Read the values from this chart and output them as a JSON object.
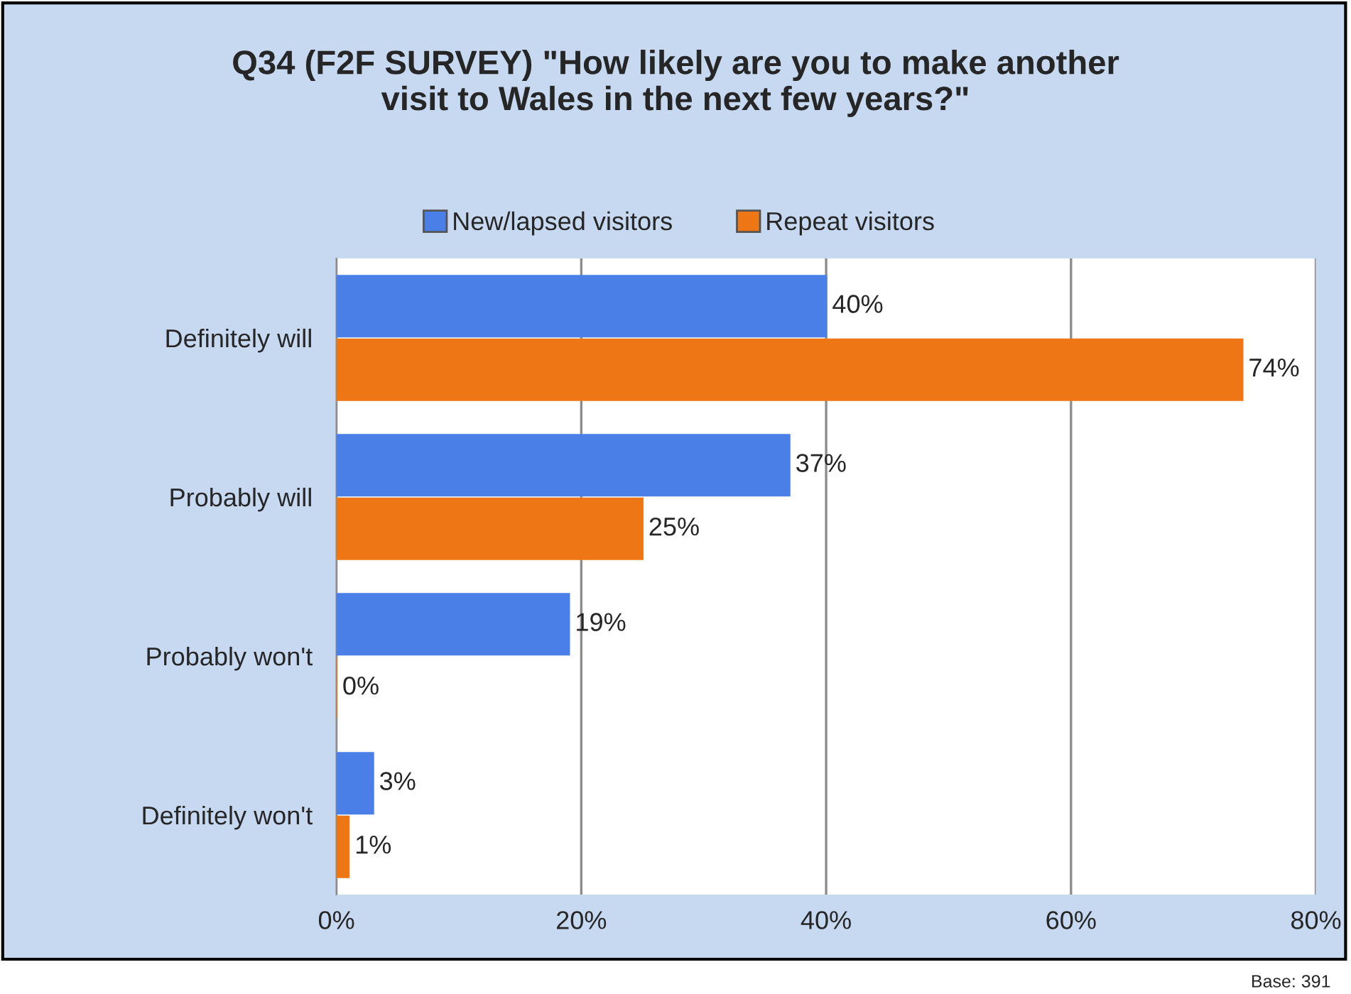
{
  "chart_data": {
    "type": "bar",
    "orientation": "horizontal",
    "title": "Q34 (F2F SURVEY) \"How likely are you to make another\nvisit to Wales in the next few years?\"",
    "categories": [
      "Definitely will",
      "Probably will",
      "Probably won't",
      "Definitely won't"
    ],
    "series": [
      {
        "name": "New/lapsed visitors",
        "color": "#4a7fe8",
        "values": [
          40,
          37,
          19,
          3
        ],
        "value_labels": [
          "40%",
          "37%",
          "19%",
          "3%"
        ]
      },
      {
        "name": "Repeat visitors",
        "color": "#ee7614",
        "values": [
          74,
          25,
          0,
          1
        ],
        "value_labels": [
          "74%",
          "25%",
          "0%",
          "1%"
        ]
      }
    ],
    "xlim": [
      0,
      80
    ],
    "xticks": [
      {
        "value": 0,
        "label": "0%"
      },
      {
        "value": 20,
        "label": "20%"
      },
      {
        "value": 40,
        "label": "40%"
      },
      {
        "value": 60,
        "label": "60%"
      },
      {
        "value": 80,
        "label": "80%"
      }
    ],
    "grid": "x",
    "legend": "top",
    "annotations": [
      "Base: 391"
    ]
  }
}
